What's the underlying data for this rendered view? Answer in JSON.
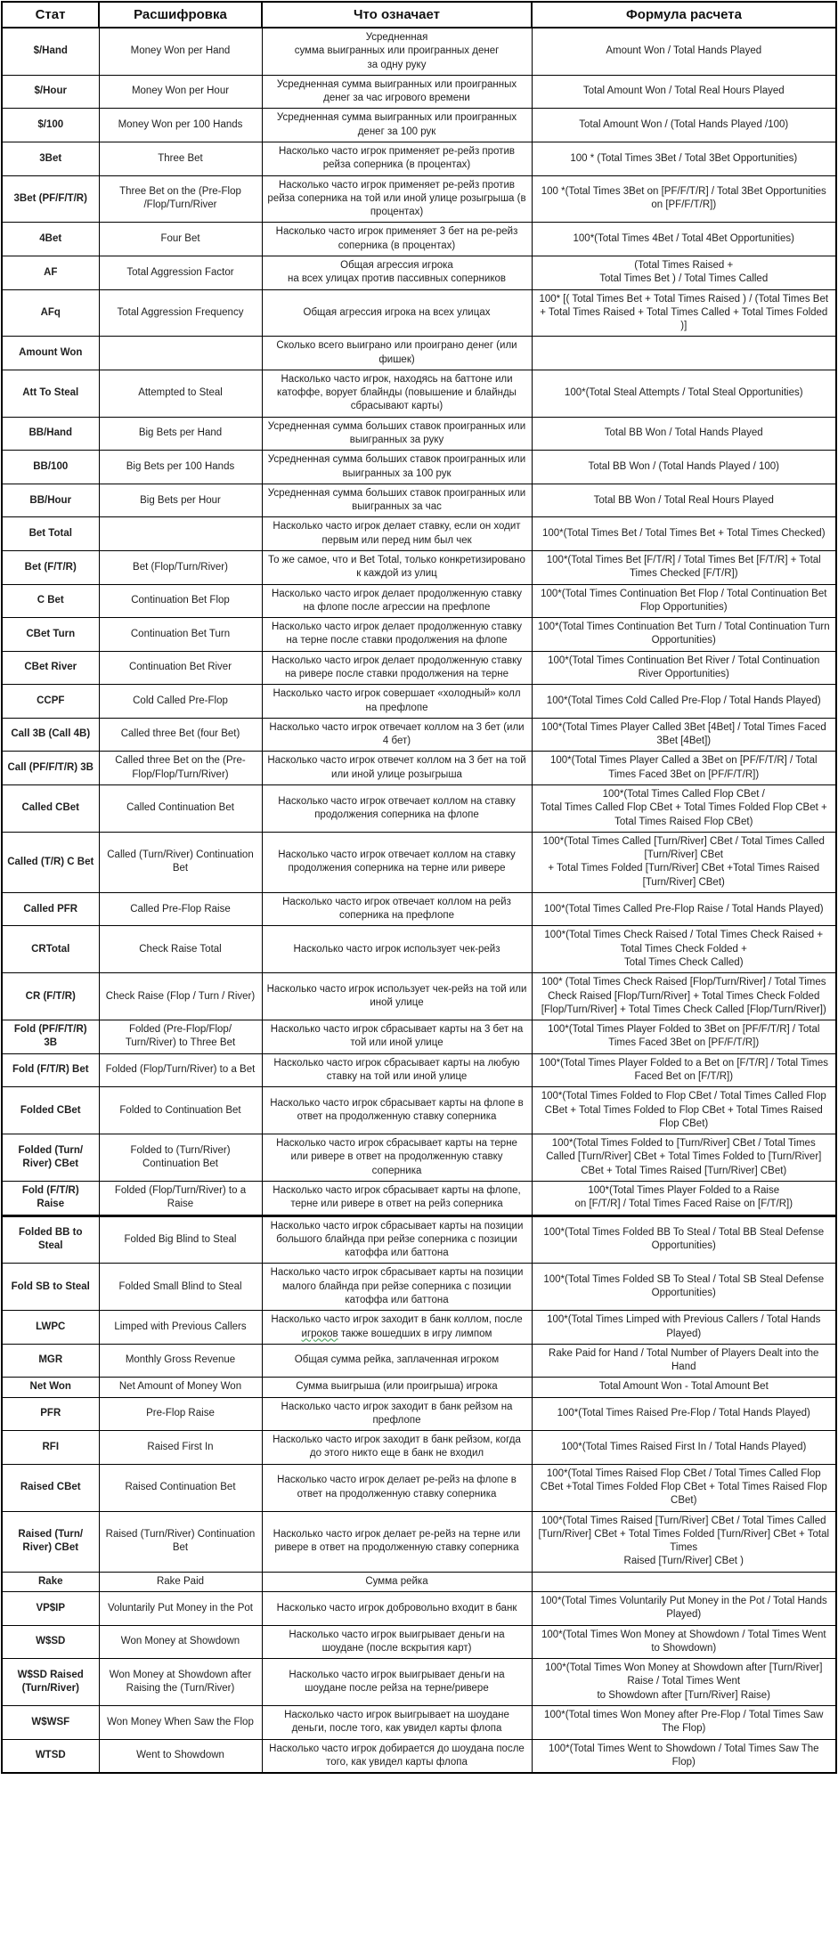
{
  "table": {
    "headers": [
      "Стат",
      "Расшифровка",
      "Что означает",
      "Формула расчета"
    ],
    "rows": [
      {
        "stat": "$/Hand",
        "expansion": "Money Won per Hand",
        "meaning": "Усредненная\nсумма выигранных или проигранных денег\nза одну руку",
        "formula": "Amount Won / Total Hands Played"
      },
      {
        "stat": "$/Hour",
        "expansion": "Money Won per Hour",
        "meaning": "Усредненная сумма выигранных или проигранных денег за час игрового времени",
        "formula": "Total Amount Won / Total Real Hours Played"
      },
      {
        "stat": "$/100",
        "expansion": "Money Won per 100 Hands",
        "meaning": "Усредненная сумма выигранных или проигранных денег за 100 рук",
        "formula": "Total Amount Won / (Total Hands Played /100)"
      },
      {
        "stat": "3Bet",
        "expansion": "Three Bet",
        "meaning": "Насколько часто игрок применяет ре-рейз против рейза соперника (в процентах)",
        "formula": "100 * (Total Times 3Bet / Total 3Bet Opportunities)"
      },
      {
        "stat": "3Bet (PF/F/T/R)",
        "expansion": "Three Bet on the (Pre-Flop /Flop/Turn/River",
        "meaning": "Насколько часто игрок применяет ре-рейз против рейза соперника на той или иной улице розыгрыша (в процентах)",
        "formula": "100 *(Total Times 3Bet on [PF/F/T/R] / Total 3Bet Opportunities on [PF/F/T/R])"
      },
      {
        "stat": "4Bet",
        "expansion": "Four Bet",
        "meaning": "Насколько часто игрок применяет 3 бет на ре-рейз соперника (в процентах)",
        "formula": "100*(Total Times 4Bet / Total 4Bet Opportunities)"
      },
      {
        "stat": "AF",
        "expansion": "Total Aggression Factor",
        "meaning": "Общая агрессия игрока\nна всех улицах против пассивных соперников",
        "formula": "(Total Times Raised +\nTotal Times Bet ) / Total Times Called"
      },
      {
        "stat": "AFq",
        "expansion": "Total Aggression Frequency",
        "meaning": "Общая агрессия игрока на всех улицах",
        "formula": "100* [( Total Times Bet + Total Times Raised ) / (Total Times Bet + Total Times Raised + Total Times Called + Total Times Folded )]"
      },
      {
        "stat": "Amount Won",
        "expansion": "",
        "meaning": "Сколько всего выиграно или проиграно денег (или фишек)",
        "formula": ""
      },
      {
        "stat": "Att To Steal",
        "expansion": "Attempted to Steal",
        "meaning": "Насколько часто игрок, находясь на баттоне или катоффе, ворует блайнды (повышение и блайнды сбрасывают карты)",
        "formula": "100*(Total Steal Attempts / Total Steal Opportunities)"
      },
      {
        "stat": "BB/Hand",
        "expansion": "Big Bets per Hand",
        "meaning": "Усредненная сумма больших ставок проигранных или выигранных за руку",
        "formula": "Total BB Won / Total Hands Played"
      },
      {
        "stat": "BB/100",
        "expansion": "Big Bets per 100 Hands",
        "meaning": "Усредненная сумма больших ставок проигранных или выигранных за 100 рук",
        "formula": "Total BB Won / (Total Hands Played / 100)"
      },
      {
        "stat": "BB/Hour",
        "expansion": "Big Bets per Hour",
        "meaning": "Усредненная сумма больших ставок проигранных или выигранных за час",
        "formula": "Total BB Won / Total Real Hours Played"
      },
      {
        "stat": "Bet Total",
        "expansion": "",
        "meaning": "Насколько часто игрок делает ставку, если он ходит первым или перед ним был чек",
        "formula": "100*(Total Times Bet / Total Times Bet + Total Times Checked)"
      },
      {
        "stat": "Bet (F/T/R)",
        "expansion": "Bet (Flop/Turn/River)",
        "meaning": "То же самое, что и Bet Total, только конкретизировано к каждой из улиц",
        "formula": "100*(Total Times Bet [F/T/R] / Total Times Bet [F/T/R] + Total Times Checked [F/T/R])"
      },
      {
        "stat": "C Bet",
        "expansion": "Continuation Bet Flop",
        "meaning": "Насколько часто игрок делает продолженную ставку на флопе после агрессии на префлопе",
        "formula": "100*(Total Times Continuation Bet Flop / Total Continuation Bet Flop Opportunities)"
      },
      {
        "stat": "CBet Turn",
        "expansion": "Continuation Bet Turn",
        "meaning": "Насколько часто игрок делает продолженную ставку на терне после ставки продолжения на флопе",
        "formula": "100*(Total Times Continuation Bet Turn / Total Continuation Turn Opportunities)"
      },
      {
        "stat": "CBet River",
        "expansion": "Continuation Bet River",
        "meaning": "Насколько часто игрок делает продолженную ставку на ривере после ставки продолжения на терне",
        "formula": "100*(Total Times Continuation Bet River / Total Continuation River Opportunities)"
      },
      {
        "stat": "CCPF",
        "expansion": "Cold Called Pre-Flop",
        "meaning": "Насколько часто игрок совершает «холодный» колл на префлопе",
        "formula": "100*(Total Times Cold Called Pre-Flop / Total Hands Played)"
      },
      {
        "stat": "Call 3B (Call 4B)",
        "expansion": "Called three Bet (four Bet)",
        "meaning": "Насколько часто игрок отвечает коллом на 3 бет (или 4 бет)",
        "formula": "100*(Total Times Player Called 3Bet [4Bet] / Total Times Faced 3Bet [4Bet])"
      },
      {
        "stat": "Call (PF/F/T/R) 3B",
        "expansion": "Called three Bet on the (Pre-Flop/Flop/Turn/River)",
        "meaning": "Насколько часто игрок отвечет коллом на 3 бет на той или иной улице розыгрыша",
        "formula": "100*(Total Times Player Called a 3Bet on [PF/F/T/R] / Total Times Faced 3Bet on [PF/F/T/R])"
      },
      {
        "stat": "Called CBet",
        "expansion": "Called Continuation Bet",
        "meaning": "Насколько часто игрок отвечает коллом на ставку продолжения соперника на флопе",
        "formula": "100*(Total Times Called Flop CBet /\nTotal Times Called Flop CBet + Total Times Folded Flop CBet + Total Times Raised Flop CBet)"
      },
      {
        "stat": "Called (T/R) C Bet",
        "expansion": "Called (Turn/River) Continuation Bet",
        "meaning": "Насколько часто игрок отвечает коллом на ставку продолжения соперника на терне или ривере",
        "formula": "100*(Total Times Called [Turn/River] CBet / Total Times Called [Turn/River] CBet\n+ Total Times Folded [Turn/River] CBet +Total Times Raised [Turn/River] CBet)"
      },
      {
        "stat": "Called PFR",
        "expansion": "Called Pre-Flop Raise",
        "meaning": "Насколько часто игрок отвечает коллом на рейз соперника на префлопе",
        "formula": "100*(Total Times Called Pre-Flop Raise / Total Hands Played)"
      },
      {
        "stat": "CRTotal",
        "expansion": "Check Raise Total",
        "meaning": "Насколько часто игрок использует чек-рейз",
        "formula": "100*(Total Times Check Raised / Total Times Check Raised + Total Times Check Folded +\nTotal Times Check Called)"
      },
      {
        "stat": "CR (F/T/R)",
        "expansion": "Check Raise (Flop / Turn / River)",
        "meaning": "Насколько часто игрок использует чек-рейз на той или иной улице",
        "formula": "100* (Total Times Check Raised [Flop/Turn/River] / Total Times Check Raised [Flop/Turn/River] + Total Times Check Folded [Flop/Turn/River] + Total Times Check Called [Flop/Turn/River])"
      },
      {
        "stat": "Fold (PF/F/T/R) 3B",
        "expansion": "Folded (Pre-Flop/Flop/ Turn/River) to Three Bet",
        "meaning": "Насколько часто игрок сбрасывает карты на 3 бет на той или иной улице",
        "formula": "100*(Total Times Player Folded to 3Bet on [PF/F/T/R] / Total Times Faced 3Bet on [PF/F/T/R])"
      },
      {
        "stat": "Fold (F/T/R) Bet",
        "expansion": "Folded (Flop/Turn/River) to a Bet",
        "meaning": "Насколько часто игрок сбрасывает карты на любую ставку на той или иной улице",
        "formula": "100*(Total Times Player Folded to a Bet on [F/T/R] / Total Times Faced Bet on [F/T/R])"
      },
      {
        "stat": "Folded CBet",
        "expansion": "Folded to Continuation Bet",
        "meaning": "Насколько часто игрок сбрасывает карты на флопе в ответ на продолженную ставку соперника",
        "formula": "100*(Total Times Folded to Flop CBet / Total Times Called Flop CBet + Total Times Folded to Flop CBet + Total Times Raised Flop CBet)"
      },
      {
        "stat": "Folded (Turn/ River) CBet",
        "expansion": "Folded to (Turn/River) Continuation Bet",
        "meaning": "Насколько часто игрок сбрасывает карты на терне или ривере в ответ на продолженную ставку соперника",
        "formula": "100*(Total Times Folded to [Turn/River] CBet / Total Times Called [Turn/River] CBet + Total Times Folded to [Turn/River] CBet + Total Times Raised [Turn/River] CBet)"
      },
      {
        "stat": "Fold (F/T/R) Raise",
        "expansion": "Folded (Flop/Turn/River) to a Raise",
        "meaning": "Насколько часто игрок сбрасывает карты на флопе, терне или ривере в ответ на рейз соперника",
        "formula": "100*(Total Times Player Folded to a Raise\non [F/T/R] / Total Times Faced Raise on [F/T/R])",
        "thick_bottom": true
      },
      {
        "stat": "Folded BB to Steal",
        "expansion": "Folded Big Blind to Steal",
        "meaning": "Насколько часто игрок сбрасывает карты на позиции большого блайнда при рейзе соперника с позиции катоффа или баттона",
        "formula": "100*(Total Times Folded BB To Steal / Total BB Steal Defense Opportunities)"
      },
      {
        "stat": "Fold SB to Steal",
        "expansion": "Folded Small Blind to Steal",
        "meaning": "Насколько часто игрок сбрасывает карты на позиции малого блайнда при рейзе соперника с позиции катоффа или баттона",
        "formula": "100*(Total Times Folded SB To Steal / Total SB Steal Defense Opportunities)"
      },
      {
        "stat": "LWPC",
        "expansion": "Limped with Previous Callers",
        "meaning": "Насколько часто игрок заходит в банк коллом, после игроков также вошедших в игру лимпом",
        "wavy_word": "игроков",
        "formula": "100*(Total Times Limped with Previous Callers / Total Hands Played)"
      },
      {
        "stat": "MGR",
        "expansion": "Monthly Gross Revenue",
        "meaning": "Общая сумма рейка, заплаченная игроком",
        "formula": "Rake Paid for Hand / Total Number of Players Dealt into the Hand"
      },
      {
        "stat": "Net Won",
        "expansion": "Net Amount of Money Won",
        "meaning": "Сумма выигрыша (или проигрыша) игрока",
        "formula": "Total Amount Won - Total Amount Bet"
      },
      {
        "stat": "PFR",
        "expansion": "Pre-Flop Raise",
        "meaning": "Насколько часто игрок заходит в банк рейзом на префлопе",
        "formula": "100*(Total Times Raised Pre-Flop / Total Hands Played)"
      },
      {
        "stat": "RFI",
        "expansion": "Raised First In",
        "meaning": "Насколько часто игрок заходит в банк рейзом, когда до этого никто еще в банк не входил",
        "formula": "100*(Total Times Raised First In / Total Hands Played)"
      },
      {
        "stat": "Raised CBet",
        "expansion": "Raised Continuation Bet",
        "meaning": "Насколько часто игрок делает ре-рейз на флопе в ответ на продолженную ставку соперника",
        "formula": "100*(Total Times Raised Flop CBet / Total Times Called Flop CBet +Total Times Folded Flop CBet + Total Times Raised Flop CBet)"
      },
      {
        "stat": "Raised (Turn/ River) CBet",
        "expansion": "Raised (Turn/River) Continuation Bet",
        "meaning": "Насколько часто игрок делает ре-рейз на терне или ривере в ответ на продолженную ставку соперника",
        "formula": "100*(Total Times Raised [Turn/River] CBet / Total Times Called [Turn/River] CBet + Total Times Folded [Turn/River] CBet + Total Times\nRaised [Turn/River] CBet )"
      },
      {
        "stat": "Rake",
        "expansion": "Rake Paid",
        "meaning": "Сумма рейка",
        "formula": ""
      },
      {
        "stat": "VP$IP",
        "expansion": "Voluntarily Put Money in the Pot",
        "meaning": "Насколько часто игрок добровольно входит в банк",
        "formula": "100*(Total Times Voluntarily Put Money in the Pot / Total Hands Played)"
      },
      {
        "stat": "W$SD",
        "expansion": "Won Money at Showdown",
        "meaning": "Насколько часто игрок выигрывает деньги на шоудане (после вскрытия карт)",
        "formula": "100*(Total Times Won Money at Showdown / Total Times Went to Showdown)"
      },
      {
        "stat": "W$SD Raised (Turn/River)",
        "expansion": "Won Money at Showdown after Raising the (Turn/River)",
        "meaning": "Насколько часто игрок выигрывает деньги на шоудане после рейза на терне/ривере",
        "formula": "100*(Total Times Won Money at Showdown after [Turn/River] Raise / Total Times Went\nto Showdown after [Turn/River] Raise)"
      },
      {
        "stat": "W$WSF",
        "expansion": "Won Money When Saw the Flop",
        "meaning": "Насколько часто игрок выигрывает на шоудане деньги, после того, как увидел карты флопа",
        "formula": "100*(Total times Won Money after Pre-Flop / Total Times Saw The Flop)"
      },
      {
        "stat": "WTSD",
        "expansion": "Went to Showdown",
        "meaning": "Насколько часто игрок добирается до шоудана после того, как увидел карты флопа",
        "formula": "100*(Total Times Went to Showdown / Total Times Saw The Flop)"
      }
    ]
  }
}
